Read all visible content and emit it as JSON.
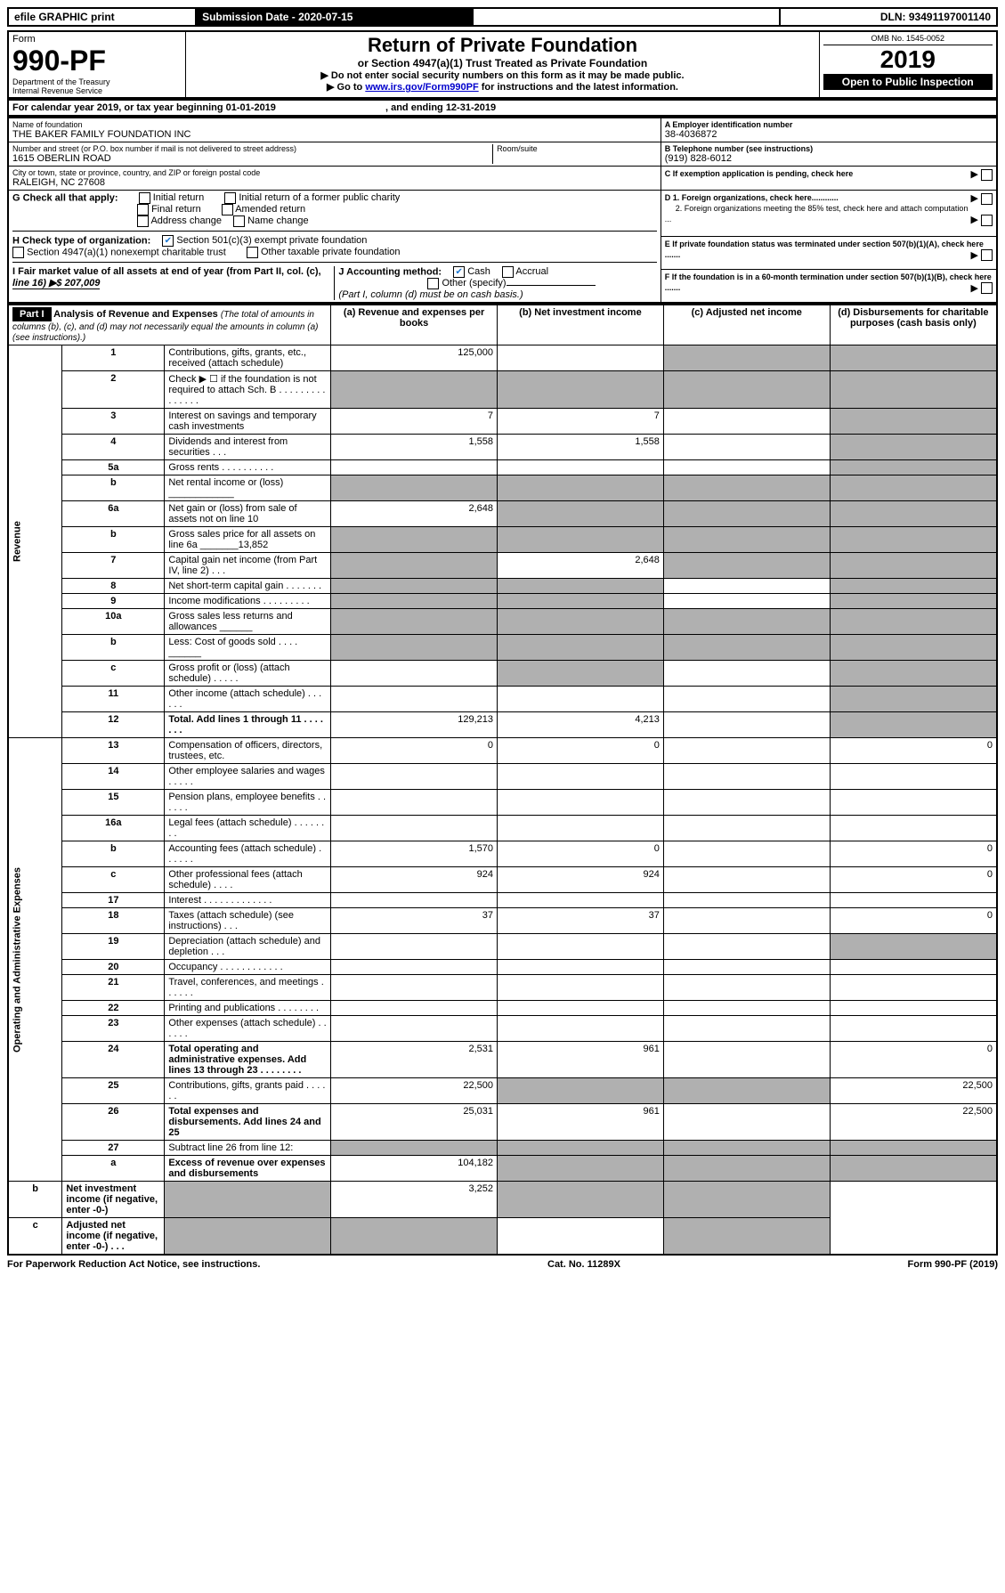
{
  "top_bar": {
    "efile": "efile GRAPHIC print",
    "submission_label": "Submission Date - 2020-07-15",
    "dln": "DLN: 93491197001140"
  },
  "header": {
    "form_label": "Form",
    "form_number": "990-PF",
    "dept": "Department of the Treasury",
    "irs": "Internal Revenue Service",
    "title": "Return of Private Foundation",
    "subtitle": "or Section 4947(a)(1) Trust Treated as Private Foundation",
    "note1": "▶ Do not enter social security numbers on this form as it may be made public.",
    "note2_prefix": "▶ Go to ",
    "note2_link": "www.irs.gov/Form990PF",
    "note2_suffix": " for instructions and the latest information.",
    "omb": "OMB No. 1545-0052",
    "year": "2019",
    "inspect": "Open to Public Inspection"
  },
  "period": {
    "line": "For calendar year 2019, or tax year beginning 01-01-2019",
    "ending": ", and ending 12-31-2019"
  },
  "entity": {
    "name_label": "Name of foundation",
    "name": "THE BAKER FAMILY FOUNDATION INC",
    "addr_label": "Number and street (or P.O. box number if mail is not delivered to street address)",
    "room_label": "Room/suite",
    "address": "1615 OBERLIN ROAD",
    "city_label": "City or town, state or province, country, and ZIP or foreign postal code",
    "city": "RALEIGH, NC  27608",
    "a_label": "A Employer identification number",
    "ein": "38-4036872",
    "b_label": "B Telephone number (see instructions)",
    "phone": "(919) 828-6012",
    "c_label": "C If exemption application is pending, check here",
    "d1_label": "D 1. Foreign organizations, check here............",
    "d2_label": "2. Foreign organizations meeting the 85% test, check here and attach computation ...",
    "e_label": "E  If private foundation status was terminated under section 507(b)(1)(A), check here .......",
    "f_label": "F  If the foundation is in a 60-month termination under section 507(b)(1)(B), check here ......."
  },
  "checks": {
    "g_label": "G Check all that apply:",
    "g_items": [
      "Initial return",
      "Initial return of a former public charity",
      "Final return",
      "Amended return",
      "Address change",
      "Name change"
    ],
    "h_label": "H Check type of organization:",
    "h1": "Section 501(c)(3) exempt private foundation",
    "h2": "Section 4947(a)(1) nonexempt charitable trust",
    "h3": "Other taxable private foundation",
    "i_label": "I Fair market value of all assets at end of year (from Part II, col. (c),",
    "i_line": "line 16) ▶$  207,009",
    "j_label": "J Accounting method:",
    "j_cash": "Cash",
    "j_accrual": "Accrual",
    "j_other": "Other (specify)",
    "j_note": "(Part I, column (d) must be on cash basis.)"
  },
  "part1": {
    "label": "Part I",
    "title": "Analysis of Revenue and Expenses",
    "title_note": "(The total of amounts in columns (b), (c), and (d) may not necessarily equal the amounts in column (a) (see instructions).)",
    "col_a": "(a)    Revenue and expenses per books",
    "col_b": "(b)   Net investment income",
    "col_c": "(c)   Adjusted net income",
    "col_d": "(d)   Disbursements for charitable purposes (cash basis only)"
  },
  "vert_labels": {
    "revenue": "Revenue",
    "expenses": "Operating and Administrative Expenses"
  },
  "rows": [
    {
      "n": "1",
      "desc": "Contributions, gifts, grants, etc., received (attach schedule)",
      "a": "125,000",
      "b": "",
      "c": "g",
      "d": "g"
    },
    {
      "n": "2",
      "desc": "Check ▶ ☐ if the foundation is not required to attach Sch. B .  .  .  .  .  .  .  .  .  .  .  .  .  .  .",
      "a": "g",
      "b": "g",
      "c": "g",
      "d": "g"
    },
    {
      "n": "3",
      "desc": "Interest on savings and temporary cash investments",
      "a": "7",
      "b": "7",
      "c": "",
      "d": "g"
    },
    {
      "n": "4",
      "desc": "Dividends and interest from securities   .   .   .",
      "a": "1,558",
      "b": "1,558",
      "c": "",
      "d": "g"
    },
    {
      "n": "5a",
      "desc": "Gross rents   .   .   .   .   .   .   .   .   .   .",
      "a": "",
      "b": "",
      "c": "",
      "d": "g"
    },
    {
      "n": "b",
      "desc": "Net rental income or (loss)   ____________",
      "a": "g",
      "b": "g",
      "c": "g",
      "d": "g"
    },
    {
      "n": "6a",
      "desc": "Net gain or (loss) from sale of assets not on line 10",
      "a": "2,648",
      "b": "g",
      "c": "g",
      "d": "g"
    },
    {
      "n": "b",
      "desc": "Gross sales price for all assets on line 6a _______13,852",
      "a": "g",
      "b": "g",
      "c": "g",
      "d": "g"
    },
    {
      "n": "7",
      "desc": "Capital gain net income (from Part IV, line 2)   .   .   .",
      "a": "g",
      "b": "2,648",
      "c": "g",
      "d": "g"
    },
    {
      "n": "8",
      "desc": "Net short-term capital gain   .   .   .   .   .   .   .",
      "a": "g",
      "b": "g",
      "c": "",
      "d": "g"
    },
    {
      "n": "9",
      "desc": "Income modifications   .   .   .   .   .   .   .   .   .",
      "a": "g",
      "b": "g",
      "c": "",
      "d": "g"
    },
    {
      "n": "10a",
      "desc": "Gross sales less returns and allowances   ______",
      "a": "g",
      "b": "g",
      "c": "g",
      "d": "g"
    },
    {
      "n": "b",
      "desc": "Less: Cost of goods sold   .   .   .   .   ______",
      "a": "g",
      "b": "g",
      "c": "g",
      "d": "g"
    },
    {
      "n": "c",
      "desc": "Gross profit or (loss) (attach schedule)   .   .   .   .   .",
      "a": "",
      "b": "g",
      "c": "",
      "d": "g"
    },
    {
      "n": "11",
      "desc": "Other income (attach schedule)   .   .   .   .   .   .",
      "a": "",
      "b": "",
      "c": "",
      "d": "g"
    },
    {
      "n": "12",
      "desc": "Total. Add lines 1 through 11   .   .   .   .   .   .   .",
      "a": "129,213",
      "b": "4,213",
      "c": "",
      "d": "g",
      "bold": true
    },
    {
      "n": "13",
      "desc": "Compensation of officers, directors, trustees, etc.",
      "a": "0",
      "b": "0",
      "c": "",
      "d": "0"
    },
    {
      "n": "14",
      "desc": "Other employee salaries and wages   .   .   .   .   .",
      "a": "",
      "b": "",
      "c": "",
      "d": ""
    },
    {
      "n": "15",
      "desc": "Pension plans, employee benefits   .   .   .   .   .   .",
      "a": "",
      "b": "",
      "c": "",
      "d": ""
    },
    {
      "n": "16a",
      "desc": "Legal fees (attach schedule)   .   .   .   .   .   .   .   .",
      "a": "",
      "b": "",
      "c": "",
      "d": ""
    },
    {
      "n": "b",
      "desc": "Accounting fees (attach schedule)   .   .   .   .   .   .",
      "a": "1,570",
      "b": "0",
      "c": "",
      "d": "0"
    },
    {
      "n": "c",
      "desc": "Other professional fees (attach schedule)   .   .   .   .",
      "a": "924",
      "b": "924",
      "c": "",
      "d": "0"
    },
    {
      "n": "17",
      "desc": "Interest   .   .   .   .   .   .   .   .   .   .   .   .   .",
      "a": "",
      "b": "",
      "c": "",
      "d": ""
    },
    {
      "n": "18",
      "desc": "Taxes (attach schedule) (see instructions)   .   .   .",
      "a": "37",
      "b": "37",
      "c": "",
      "d": "0"
    },
    {
      "n": "19",
      "desc": "Depreciation (attach schedule) and depletion   .   .   .",
      "a": "",
      "b": "",
      "c": "",
      "d": "g"
    },
    {
      "n": "20",
      "desc": "Occupancy   .   .   .   .   .   .   .   .   .   .   .   .",
      "a": "",
      "b": "",
      "c": "",
      "d": ""
    },
    {
      "n": "21",
      "desc": "Travel, conferences, and meetings   .   .   .   .   .   .",
      "a": "",
      "b": "",
      "c": "",
      "d": ""
    },
    {
      "n": "22",
      "desc": "Printing and publications   .   .   .   .   .   .   .   .",
      "a": "",
      "b": "",
      "c": "",
      "d": ""
    },
    {
      "n": "23",
      "desc": "Other expenses (attach schedule)   .   .   .   .   .   .",
      "a": "",
      "b": "",
      "c": "",
      "d": ""
    },
    {
      "n": "24",
      "desc": "Total operating and administrative expenses. Add lines 13 through 23   .   .   .   .   .   .   .   .",
      "a": "2,531",
      "b": "961",
      "c": "",
      "d": "0",
      "bold": true
    },
    {
      "n": "25",
      "desc": "Contributions, gifts, grants paid   .   .   .   .   .   .",
      "a": "22,500",
      "b": "g",
      "c": "g",
      "d": "22,500"
    },
    {
      "n": "26",
      "desc": "Total expenses and disbursements. Add lines 24 and 25",
      "a": "25,031",
      "b": "961",
      "c": "",
      "d": "22,500",
      "bold": true
    },
    {
      "n": "27",
      "desc": "Subtract line 26 from line 12:",
      "a": "g",
      "b": "g",
      "c": "g",
      "d": "g"
    },
    {
      "n": "a",
      "desc": "Excess of revenue over expenses and disbursements",
      "a": "104,182",
      "b": "g",
      "c": "g",
      "d": "g",
      "bold": true
    },
    {
      "n": "b",
      "desc": "Net investment income (if negative, enter -0-)",
      "a": "g",
      "b": "3,252",
      "c": "g",
      "d": "g",
      "bold": true
    },
    {
      "n": "c",
      "desc": "Adjusted net income (if negative, enter -0-)   .   .   .",
      "a": "g",
      "b": "g",
      "c": "",
      "d": "g",
      "bold": true
    }
  ],
  "footer": {
    "left": "For Paperwork Reduction Act Notice, see instructions.",
    "mid": "Cat. No. 11289X",
    "right": "Form 990-PF (2019)"
  },
  "colors": {
    "grey": "#b0b0b0",
    "link": "#0000cc",
    "check": "#1976d2"
  }
}
